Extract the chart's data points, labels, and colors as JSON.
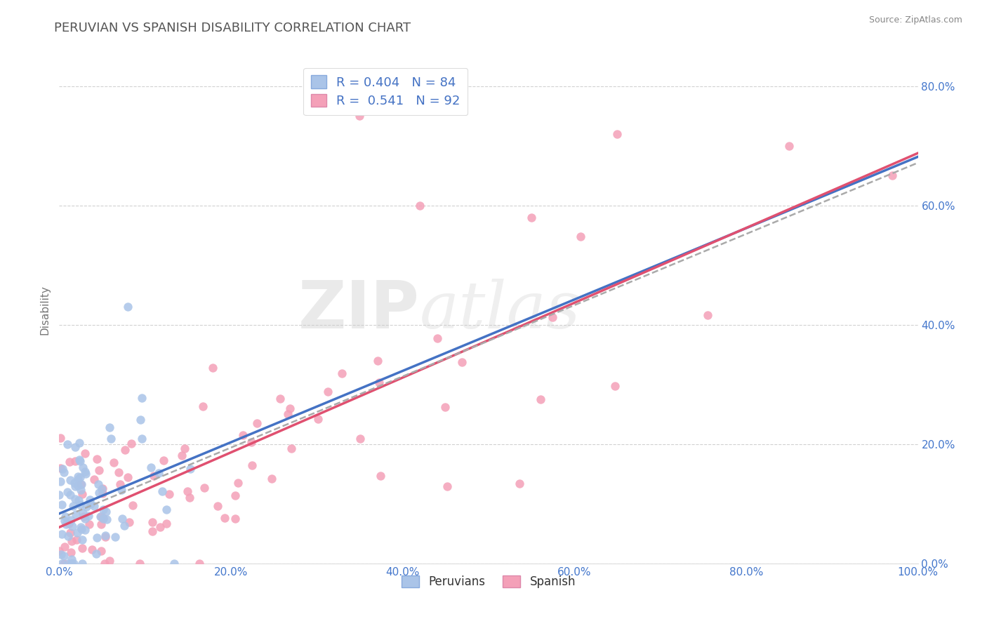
{
  "title": "PERUVIAN VS SPANISH DISABILITY CORRELATION CHART",
  "source": "Source: ZipAtlas.com",
  "ylabel": "Disability",
  "legend_label1": "Peruvians",
  "legend_label2": "Spanish",
  "r1": 0.404,
  "n1": 84,
  "r2": 0.541,
  "n2": 92,
  "color1": "#aac4e8",
  "color2": "#f4a0b8",
  "line_color1": "#4472c4",
  "line_color2": "#e05070",
  "trend_line_color": "#aaaaaa",
  "xlim": [
    0.0,
    1.0
  ],
  "ylim": [
    0.0,
    0.85
  ],
  "x_ticks": [
    0.0,
    0.2,
    0.4,
    0.6,
    0.8,
    1.0
  ],
  "y_ticks": [
    0.0,
    0.2,
    0.4,
    0.6,
    0.8
  ],
  "background_color": "#ffffff",
  "grid_color": "#cccccc",
  "watermark_zip": "ZIP",
  "watermark_atlas": "atlas",
  "title_color": "#555555",
  "title_fontsize": 13,
  "axis_label_color": "#777777",
  "tick_color": "#4477cc",
  "legend_text_color": "#4472c4"
}
